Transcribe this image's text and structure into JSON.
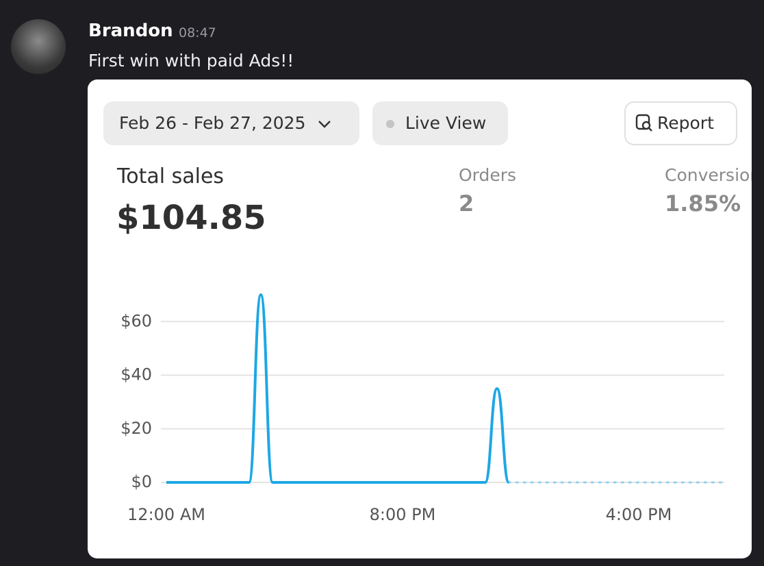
{
  "message": {
    "author": "Brandon",
    "time": "08:47",
    "text": "First win with paid Ads!!"
  },
  "toolbar": {
    "date_range": "Feb 26 - Feb 27, 2025",
    "live_view": "Live View",
    "report": "Report"
  },
  "metrics": [
    {
      "label": "Total sales",
      "value": "$104.85"
    },
    {
      "label": "Orders",
      "value": "2"
    },
    {
      "label": "Conversion",
      "value": "1.85%"
    }
  ],
  "chart_data": {
    "type": "line",
    "color": "#1ea7e4",
    "categories": [
      "12:00 AM",
      null,
      null,
      null,
      null,
      null,
      null,
      null,
      null,
      null,
      null,
      null,
      null,
      null,
      null,
      null,
      null,
      null,
      null,
      null,
      "8:00 PM",
      null,
      null,
      null,
      null,
      null,
      null,
      null,
      null,
      null,
      null,
      null,
      null,
      null,
      null,
      null,
      null,
      null,
      null,
      null,
      "4:00 PM",
      null,
      null,
      null,
      null,
      null,
      null,
      null
    ],
    "values": [
      0,
      0,
      0,
      0,
      0,
      0,
      0,
      0,
      70,
      0,
      0,
      0,
      0,
      0,
      0,
      0,
      0,
      0,
      0,
      0,
      0,
      0,
      0,
      0,
      0,
      0,
      0,
      0,
      35,
      0,
      null,
      null,
      null,
      null,
      null,
      null,
      null,
      null,
      null,
      null,
      null,
      null,
      null,
      null,
      null,
      null,
      null,
      null
    ],
    "ylim": [
      0,
      80
    ],
    "yticks": [
      {
        "value": 0,
        "label": "$0"
      },
      {
        "value": 20,
        "label": "$20"
      },
      {
        "value": 40,
        "label": "$40"
      },
      {
        "value": 60,
        "label": "$60"
      }
    ],
    "grid": true
  }
}
